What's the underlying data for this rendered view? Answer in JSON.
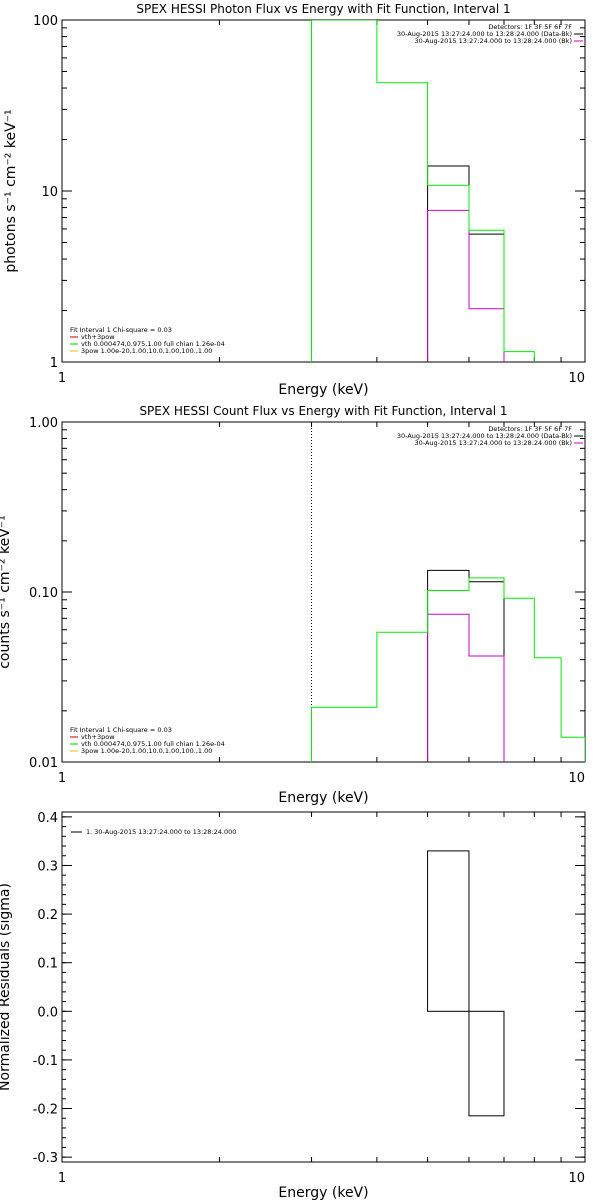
{
  "chart_data": [
    {
      "type": "line",
      "title": "SPEX HESSI Photon Flux vs Energy with Fit Function, Interval 1",
      "xlabel": "Energy (keV)",
      "ylabel": "photons s⁻¹ cm⁻² keV⁻¹",
      "xscale": "log",
      "yscale": "log",
      "xlim": [
        1,
        10
      ],
      "ylim": [
        1,
        100
      ],
      "xticks": [
        {
          "value": 1,
          "label": "1"
        },
        {
          "value": 10,
          "label": "10"
        }
      ],
      "yticks": [
        {
          "value": 1,
          "label": "1"
        },
        {
          "value": 10,
          "label": "10"
        },
        {
          "value": 100,
          "label": "100"
        }
      ],
      "vline": {
        "x": 3.0,
        "style": "solid",
        "color": "#009900"
      },
      "legend_top": {
        "position": "top-right",
        "header": "Detectors: 1F 3F 5F 6F 7F",
        "entries": [
          {
            "label": "30-Aug-2015 13:27:24.000 to 13:28:24.000 (Data-Bk)",
            "color": "#000000"
          },
          {
            "label": "30-Aug-2015 13:27:24.000 to 13:28:24.000 (Bk)",
            "color": "#cc00cc"
          }
        ]
      },
      "legend_bottom": {
        "position": "bottom-left",
        "header": "Fit Interval 1    Chi-square = 0.03",
        "entries": [
          {
            "label": "vth+3pow",
            "color": "#cc0000"
          },
          {
            "label": "vth 0.000474,0.975,1.00  full chian 1.26e-04",
            "color": "#00cc00"
          },
          {
            "label": "3pow 1.00e-20,1.00,10.0,1.00,100.,1.00",
            "color": "#cccc00"
          }
        ]
      },
      "series": [
        {
          "color": "#000000",
          "edges": [
            5.0,
            6.0,
            7.0
          ],
          "values": [
            14.0,
            5.6
          ]
        },
        {
          "color": "#cc00cc",
          "edges": [
            5.0,
            6.0,
            7.0
          ],
          "values": [
            7.7,
            2.05
          ]
        },
        {
          "color": "#00ee00",
          "edges": [
            3.0,
            4.0,
            5.0,
            6.0,
            7.0,
            8.0
          ],
          "values": [
            100.0,
            43.0,
            10.8,
            5.9,
            1.15
          ]
        }
      ]
    },
    {
      "type": "line",
      "title": "SPEX HESSI Count Flux vs Energy with Fit Function, Interval 1",
      "xlabel": "Energy (keV)",
      "ylabel": "counts s⁻¹ cm⁻² keV⁻¹",
      "xscale": "log",
      "yscale": "log",
      "xlim": [
        1,
        10
      ],
      "ylim": [
        0.01,
        1.0
      ],
      "xticks": [
        {
          "value": 1,
          "label": "1"
        },
        {
          "value": 10,
          "label": "10"
        }
      ],
      "yticks": [
        {
          "value": 0.01,
          "label": "0.01"
        },
        {
          "value": 0.1,
          "label": "0.10"
        },
        {
          "value": 1.0,
          "label": "1.00"
        }
      ],
      "vline": {
        "x": 3.0,
        "style": "dotted",
        "color": "#000000"
      },
      "legend_top": {
        "position": "top-right",
        "header": "Detectors: 1F 3F 5F 6F 7F",
        "entries": [
          {
            "label": "30-Aug-2015 13:27:24.000 to 13:28:24.000 (Data-Bk)",
            "color": "#000000"
          },
          {
            "label": "30-Aug-2015 13:27:24.000 to 13:28:24.000 (Bk)",
            "color": "#cc00cc"
          }
        ]
      },
      "legend_bottom": {
        "position": "bottom-left",
        "header": "Fit Interval 1    Chi-square = 0.03",
        "entries": [
          {
            "label": "vth+3pow",
            "color": "#cc0000"
          },
          {
            "label": "vth 0.000474,0.975,1.00  full chian 1.26e-04",
            "color": "#00cc00"
          },
          {
            "label": "3pow 1.00e-20,1.00,10.0,1.00,100.,1.00",
            "color": "#cccc00"
          }
        ]
      },
      "series": [
        {
          "color": "#000000",
          "edges": [
            5.0,
            6.0,
            7.0
          ],
          "values": [
            0.134,
            0.115
          ]
        },
        {
          "color": "#cc00cc",
          "edges": [
            5.0,
            6.0,
            7.0
          ],
          "values": [
            0.074,
            0.042
          ]
        },
        {
          "color": "#00ee00",
          "edges": [
            3.0,
            4.0,
            5.0,
            6.0,
            7.0,
            8.0,
            9.0,
            10.0
          ],
          "values": [
            0.021,
            0.058,
            0.102,
            0.121,
            0.092,
            0.041,
            0.014
          ]
        }
      ]
    },
    {
      "type": "line",
      "title": "",
      "xlabel": "Energy (keV)",
      "ylabel": "Normalized Residuals (sigma)",
      "xscale": "log",
      "yscale": "linear",
      "xlim": [
        1,
        10
      ],
      "ylim": [
        -0.31,
        0.41
      ],
      "xticks": [
        {
          "value": 1,
          "label": "1"
        },
        {
          "value": 10,
          "label": "10"
        }
      ],
      "yticks": [
        {
          "value": -0.3,
          "label": "-0.3"
        },
        {
          "value": -0.2,
          "label": "-0.2"
        },
        {
          "value": -0.1,
          "label": "-0.1"
        },
        {
          "value": 0.0,
          "label": "0.0"
        },
        {
          "value": 0.1,
          "label": "0.1"
        },
        {
          "value": 0.2,
          "label": "0.2"
        },
        {
          "value": 0.3,
          "label": "0.3"
        },
        {
          "value": 0.4,
          "label": "0.4"
        }
      ],
      "legend_top": {
        "position": "top-left",
        "entries": [
          {
            "label": "1. 30-Aug-2015 13:27:24.000 to 13:28:24.000",
            "color": "#000000"
          }
        ]
      },
      "series": [
        {
          "color": "#000000",
          "edges": [
            5.0,
            6.0,
            7.0
          ],
          "values": [
            0.33,
            -0.215
          ],
          "from_axis": true
        }
      ]
    }
  ]
}
